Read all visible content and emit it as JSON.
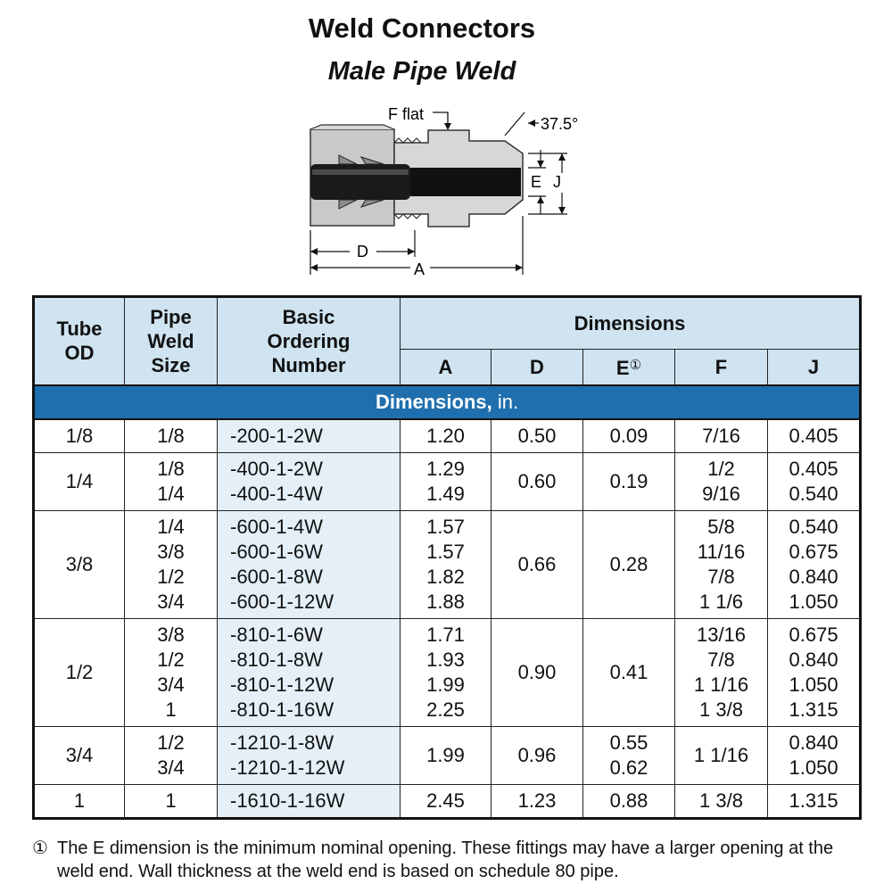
{
  "title": "Weld Connectors",
  "subtitle": "Male Pipe Weld",
  "diagram": {
    "labels": {
      "f_flat": "F flat",
      "angle": "37.5°",
      "e": "E",
      "j": "J",
      "d": "D",
      "a": "A"
    }
  },
  "table": {
    "headers": {
      "tube_od": [
        "Tube",
        "OD"
      ],
      "pipe_weld_size": [
        "Pipe",
        "Weld",
        "Size"
      ],
      "basic_ordering_number": [
        "Basic",
        "Ordering",
        "Number"
      ],
      "dimensions": "Dimensions",
      "a": "A",
      "d": "D",
      "e": "E",
      "e_note": "①",
      "f": "F",
      "j": "J"
    },
    "unit_row": {
      "label": "Dimensions,",
      "unit": "in."
    },
    "groups": [
      {
        "tube_od": "1/8",
        "pipe_sizes": [
          "1/8"
        ],
        "ordering_numbers": [
          "-200-1-2W"
        ],
        "a": [
          "1.20"
        ],
        "d": [
          "0.50"
        ],
        "e": [
          "0.09"
        ],
        "f": [
          "7/16"
        ],
        "j": [
          "0.405"
        ]
      },
      {
        "tube_od": "1/4",
        "pipe_sizes": [
          "1/8",
          "1/4"
        ],
        "ordering_numbers": [
          "-400-1-2W",
          "-400-1-4W"
        ],
        "a": [
          "1.29",
          "1.49"
        ],
        "d": [
          "0.60"
        ],
        "e": [
          "0.19"
        ],
        "f": [
          "1/2",
          "9/16"
        ],
        "j": [
          "0.405",
          "0.540"
        ]
      },
      {
        "tube_od": "3/8",
        "pipe_sizes": [
          "1/4",
          "3/8",
          "1/2",
          "3/4"
        ],
        "ordering_numbers": [
          "-600-1-4W",
          "-600-1-6W",
          "-600-1-8W",
          "-600-1-12W"
        ],
        "a": [
          "1.57",
          "1.57",
          "1.82",
          "1.88"
        ],
        "d": [
          "0.66"
        ],
        "e": [
          "0.28"
        ],
        "f": [
          "5/8",
          "11/16",
          "7/8",
          "1 1/6"
        ],
        "j": [
          "0.540",
          "0.675",
          "0.840",
          "1.050"
        ]
      },
      {
        "tube_od": "1/2",
        "pipe_sizes": [
          "3/8",
          "1/2",
          "3/4",
          "1"
        ],
        "ordering_numbers": [
          "-810-1-6W",
          "-810-1-8W",
          "-810-1-12W",
          "-810-1-16W"
        ],
        "a": [
          "1.71",
          "1.93",
          "1.99",
          "2.25"
        ],
        "d": [
          "0.90"
        ],
        "e": [
          "0.41"
        ],
        "f": [
          "13/16",
          "7/8",
          "1 1/16",
          "1 3/8"
        ],
        "j": [
          "0.675",
          "0.840",
          "1.050",
          "1.315"
        ]
      },
      {
        "tube_od": "3/4",
        "pipe_sizes": [
          "1/2",
          "3/4"
        ],
        "ordering_numbers": [
          "-1210-1-8W",
          "-1210-1-12W"
        ],
        "a": [
          "1.99"
        ],
        "d": [
          "0.96"
        ],
        "e": [
          "0.55",
          "0.62"
        ],
        "f": [
          "1 1/16"
        ],
        "j": [
          "0.840",
          "1.050"
        ]
      },
      {
        "tube_od": "1",
        "pipe_sizes": [
          "1"
        ],
        "ordering_numbers": [
          "-1610-1-16W"
        ],
        "a": [
          "2.45"
        ],
        "d": [
          "1.23"
        ],
        "e": [
          "0.88"
        ],
        "f": [
          "1 3/8"
        ],
        "j": [
          "1.315"
        ]
      }
    ]
  },
  "footnote": {
    "mark": "①",
    "text": "The E dimension is the minimum nominal opening. These fittings may have a larger opening at the weld end. Wall thickness at the weld end is based on schedule 80 pipe."
  }
}
